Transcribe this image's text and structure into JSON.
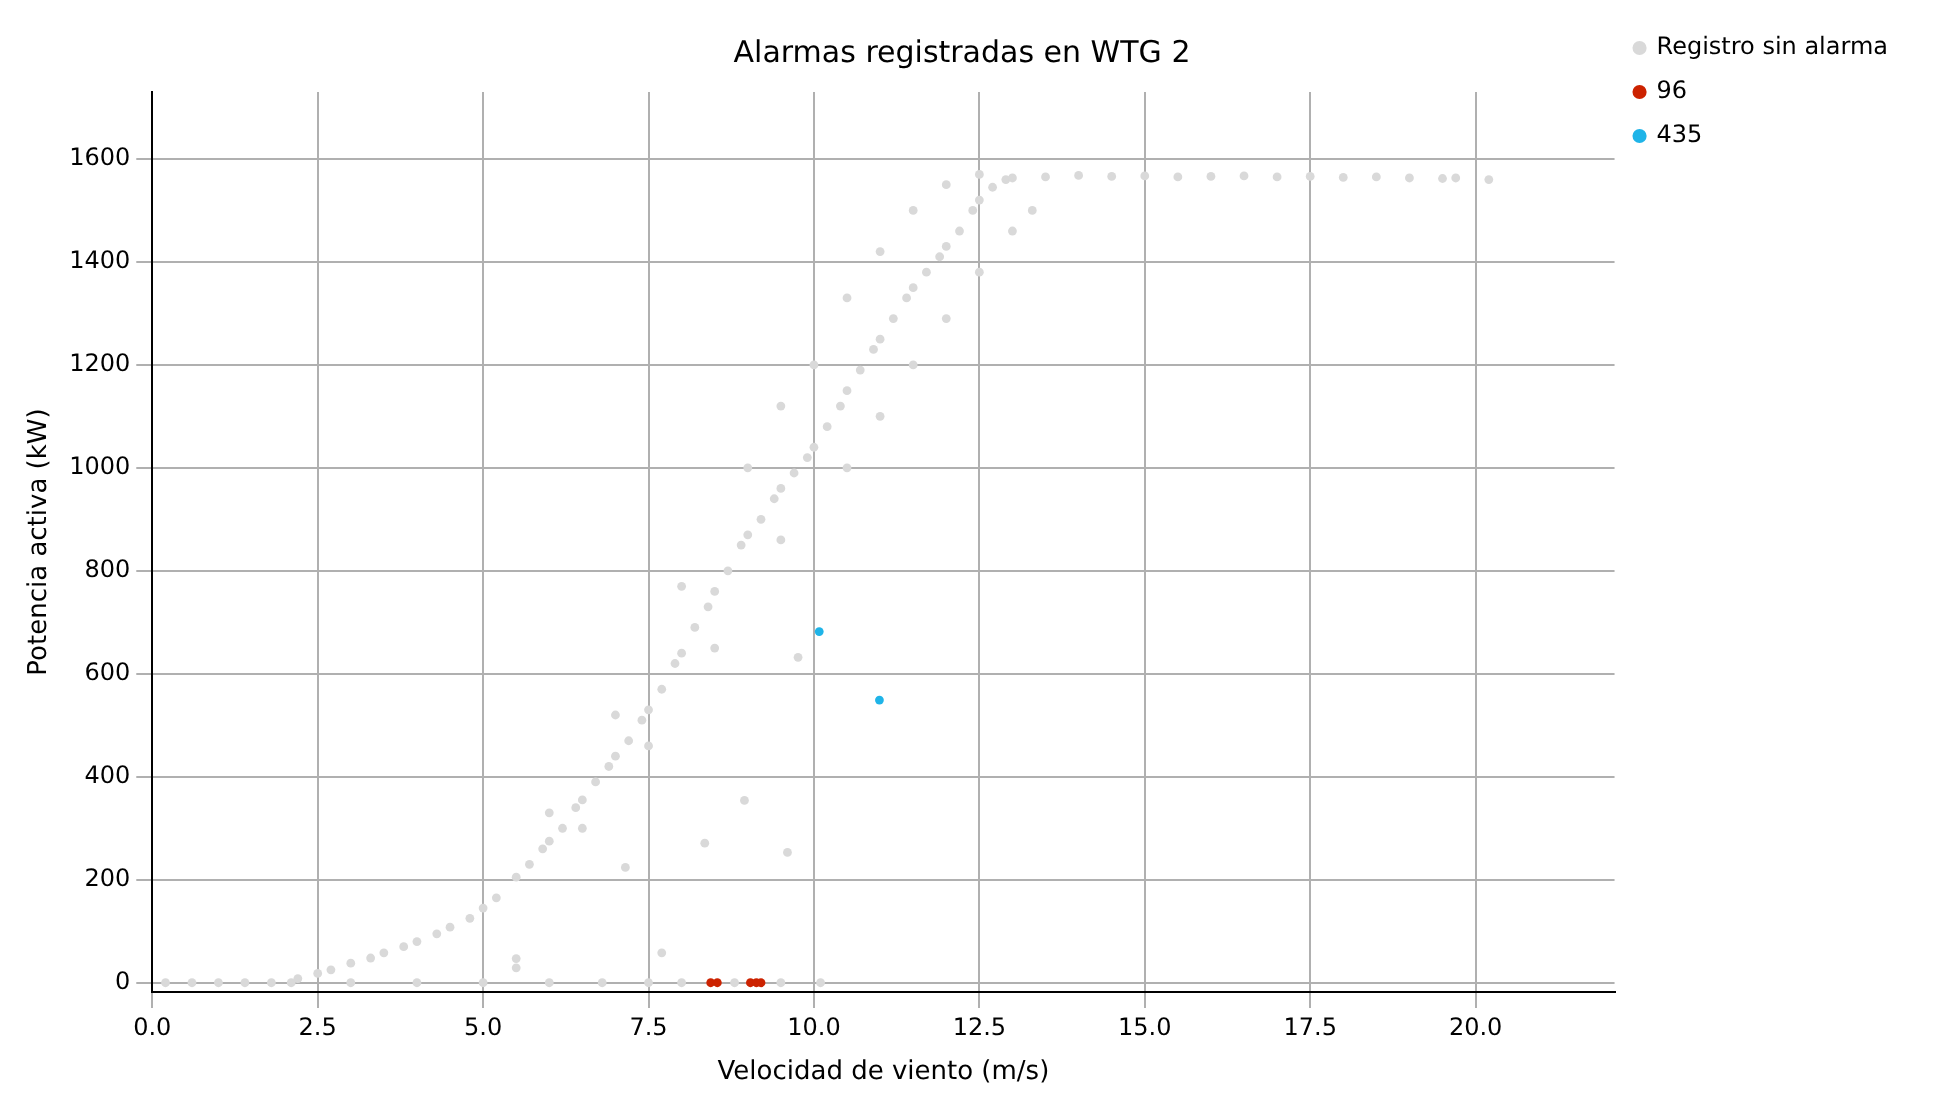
{
  "chart_data": {
    "type": "scatter",
    "title": "Alarmas registradas en WTG 2",
    "xlabel": "Velocidad de viento (m/s)",
    "ylabel": "Potencia activa (kW)",
    "xlim": [
      0,
      22.1
    ],
    "ylim": [
      -18,
      1730
    ],
    "xticks": [
      {
        "value": 0,
        "label": "0.0"
      },
      {
        "value": 2.5,
        "label": "2.5"
      },
      {
        "value": 5,
        "label": "5.0"
      },
      {
        "value": 7.5,
        "label": "7.5"
      },
      {
        "value": 10,
        "label": "10.0"
      },
      {
        "value": 12.5,
        "label": "12.5"
      },
      {
        "value": 15,
        "label": "15.0"
      },
      {
        "value": 17.5,
        "label": "17.5"
      },
      {
        "value": 20,
        "label": "20.0"
      }
    ],
    "yticks": [
      0,
      200,
      400,
      600,
      800,
      1000,
      1200,
      1400,
      1600
    ],
    "grid": true,
    "legend": "top right",
    "marker": "circle",
    "series": [
      {
        "name": "Registro sin alarma",
        "color": "#d9d9d9",
        "x": [
          0.2,
          0.6,
          1.0,
          1.4,
          1.8,
          2.1,
          3.0,
          4.0,
          5.0,
          6.0,
          6.8,
          7.5,
          8.0,
          8.8,
          9.5,
          10.1,
          2.2,
          2.5,
          2.7,
          3.0,
          3.3,
          3.5,
          3.8,
          4.0,
          4.3,
          4.5,
          4.8,
          5.0,
          5.2,
          5.5,
          5.7,
          5.9,
          6.0,
          6.2,
          6.4,
          6.5,
          6.7,
          6.9,
          7.0,
          7.2,
          7.4,
          7.5,
          7.7,
          7.9,
          8.0,
          8.2,
          8.4,
          8.5,
          8.7,
          8.9,
          9.0,
          9.2,
          9.4,
          9.5,
          9.7,
          9.9,
          10.0,
          10.2,
          10.4,
          10.5,
          10.7,
          10.9,
          11.0,
          11.2,
          11.4,
          11.5,
          11.7,
          11.9,
          12.0,
          12.2,
          12.4,
          12.5,
          12.7,
          12.9,
          13.0,
          6.0,
          7.0,
          8.0,
          9.0,
          9.5,
          10.0,
          10.5,
          11.0,
          11.5,
          12.0,
          12.5,
          6.5,
          7.5,
          8.5,
          9.5,
          10.5,
          11.0,
          11.5,
          12.0,
          12.5,
          13.0,
          13.3,
          13.5,
          14.0,
          14.5,
          15.0,
          15.5,
          16.0,
          16.5,
          17.0,
          17.5,
          18.0,
          18.5,
          19.0,
          19.5,
          19.7,
          20.2,
          5.5,
          5.5,
          7.15,
          7.7,
          8.35,
          8.95,
          9.6,
          9.76
        ],
        "values": [
          0,
          0,
          0,
          0,
          0,
          0,
          0,
          0,
          0,
          0,
          0,
          0,
          0,
          0,
          0,
          0,
          8,
          18,
          25,
          38,
          48,
          58,
          70,
          80,
          95,
          108,
          125,
          145,
          165,
          205,
          230,
          260,
          275,
          300,
          340,
          355,
          390,
          420,
          440,
          470,
          510,
          530,
          570,
          620,
          640,
          690,
          730,
          760,
          800,
          850,
          870,
          900,
          940,
          960,
          990,
          1020,
          1040,
          1080,
          1120,
          1150,
          1190,
          1230,
          1250,
          1290,
          1330,
          1350,
          1380,
          1410,
          1430,
          1460,
          1500,
          1520,
          1545,
          1560,
          1563,
          330,
          520,
          770,
          1000,
          1120,
          1200,
          1330,
          1420,
          1500,
          1550,
          1570,
          300,
          460,
          650,
          860,
          1000,
          1100,
          1200,
          1290,
          1380,
          1460,
          1500,
          1565,
          1568,
          1566,
          1567,
          1565,
          1566,
          1567,
          1565,
          1566,
          1564,
          1565,
          1563,
          1562,
          1563,
          1560,
          47,
          29,
          224,
          58,
          271,
          354,
          253,
          632
        ]
      },
      {
        "name": "96",
        "color": "#cc2200",
        "x": [
          8.44,
          8.54,
          9.04,
          9.13,
          9.2
        ],
        "values": [
          0,
          0,
          0,
          0,
          0
        ]
      },
      {
        "name": "435",
        "color": "#1fb4e8",
        "x": [
          10.08,
          10.99
        ],
        "values": [
          682,
          549
        ]
      }
    ]
  }
}
